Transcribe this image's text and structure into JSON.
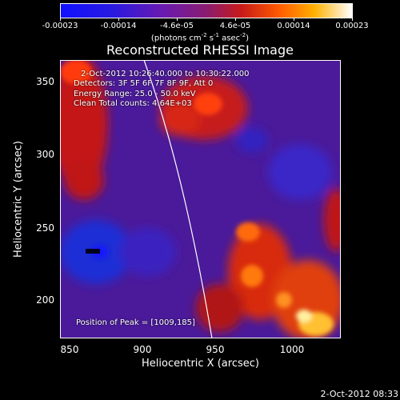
{
  "colorbar": {
    "ticks": [
      "-0.00023",
      "-0.00014",
      "-4.6e-05",
      "4.6e-05",
      "0.00014",
      "0.00023"
    ],
    "units_main": "(photons cm",
    "units_exp1": "-2",
    "units_mid1": " s",
    "units_exp2": "-1",
    "units_mid2": " asec",
    "units_exp3": "-2",
    "units_end": ")"
  },
  "title": "Reconstructed RHESSI Image",
  "info": {
    "time_range": "2-Oct-2012 10:26:40.000 to 10:30:22.000",
    "detectors": "Detectors: 3F 5F 6F 7F 8F 9F, Att 0",
    "energy": "Energy Range: 25.0 - 50.0 keV",
    "clean": "Clean    Total counts: 4.64E+03",
    "peak": "Position of Peak = [1009,185]"
  },
  "x_axis": {
    "label": "Heliocentric X (arcsec)",
    "ticks": [
      "850",
      "900",
      "950",
      "1000"
    ],
    "range": [
      842,
      1034
    ]
  },
  "y_axis": {
    "label": "Heliocentric Y (arcsec)",
    "ticks": [
      "200",
      "250",
      "300",
      "350"
    ],
    "range": [
      173,
      368
    ]
  },
  "timestamp": "2-Oct-2012 08:33"
}
